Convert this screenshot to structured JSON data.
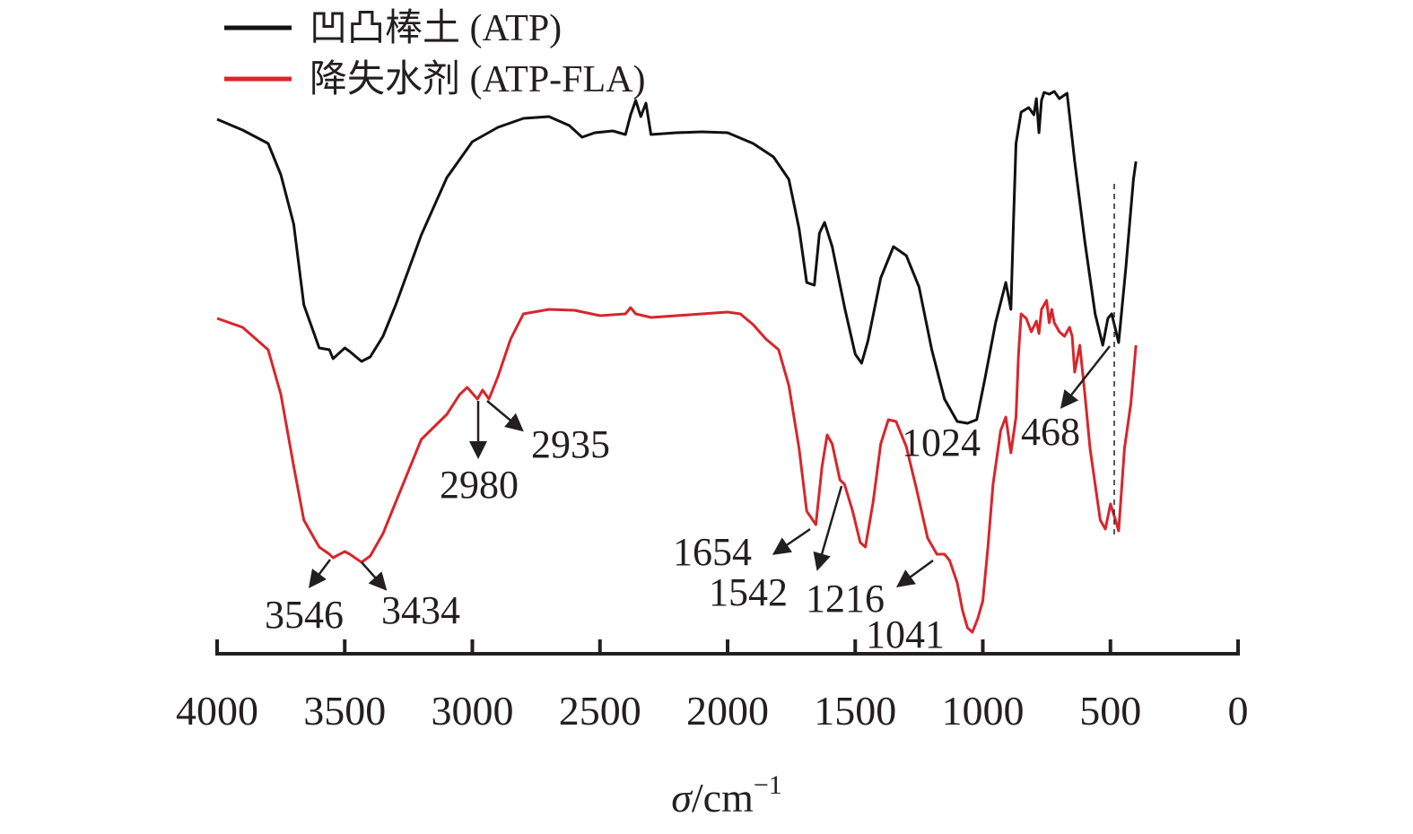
{
  "chart_data": {
    "type": "line",
    "xlabel_italic": "σ",
    "xlabel_rest": "/cm",
    "xlabel_sup": "−1",
    "ylabel": "",
    "xlim": [
      4000,
      0
    ],
    "x_ticks": [
      4000,
      3500,
      3000,
      2500,
      2000,
      1500,
      1000,
      500,
      0
    ],
    "grid": false,
    "y_axis_shown": false,
    "legend_position": "top-left",
    "series": [
      {
        "name": "凹凸棒土 (ATP)",
        "color": "#111111",
        "values": [
          [
            4000,
            133
          ],
          [
            3900,
            145
          ],
          [
            3800,
            160
          ],
          [
            3750,
            195
          ],
          [
            3700,
            250
          ],
          [
            3660,
            340
          ],
          [
            3600,
            388
          ],
          [
            3560,
            390
          ],
          [
            3546,
            400
          ],
          [
            3500,
            388
          ],
          [
            3480,
            392
          ],
          [
            3434,
            403
          ],
          [
            3400,
            398
          ],
          [
            3350,
            375
          ],
          [
            3300,
            340
          ],
          [
            3200,
            262
          ],
          [
            3100,
            198
          ],
          [
            3000,
            158
          ],
          [
            2900,
            142
          ],
          [
            2800,
            132
          ],
          [
            2700,
            130
          ],
          [
            2620,
            140
          ],
          [
            2570,
            153
          ],
          [
            2520,
            148
          ],
          [
            2450,
            146
          ],
          [
            2400,
            150
          ],
          [
            2380,
            128
          ],
          [
            2360,
            112
          ],
          [
            2340,
            130
          ],
          [
            2320,
            115
          ],
          [
            2300,
            150
          ],
          [
            2200,
            148
          ],
          [
            2100,
            147
          ],
          [
            2000,
            148
          ],
          [
            1900,
            160
          ],
          [
            1820,
            175
          ],
          [
            1760,
            200
          ],
          [
            1720,
            255
          ],
          [
            1690,
            315
          ],
          [
            1660,
            318
          ],
          [
            1640,
            260
          ],
          [
            1620,
            248
          ],
          [
            1590,
            275
          ],
          [
            1540,
            345
          ],
          [
            1500,
            395
          ],
          [
            1475,
            405
          ],
          [
            1450,
            380
          ],
          [
            1400,
            310
          ],
          [
            1350,
            275
          ],
          [
            1300,
            285
          ],
          [
            1250,
            320
          ],
          [
            1200,
            390
          ],
          [
            1150,
            445
          ],
          [
            1100,
            470
          ],
          [
            1060,
            472
          ],
          [
            1024,
            468
          ],
          [
            990,
            420
          ],
          [
            950,
            360
          ],
          [
            910,
            315
          ],
          [
            890,
            345
          ],
          [
            880,
            250
          ],
          [
            870,
            160
          ],
          [
            850,
            125
          ],
          [
            820,
            120
          ],
          [
            800,
            128
          ],
          [
            790,
            110
          ],
          [
            780,
            148
          ],
          [
            770,
            112
          ],
          [
            760,
            103
          ],
          [
            740,
            105
          ],
          [
            720,
            102
          ],
          [
            700,
            110
          ],
          [
            670,
            104
          ],
          [
            640,
            180
          ],
          [
            600,
            270
          ],
          [
            560,
            350
          ],
          [
            530,
            385
          ],
          [
            510,
            355
          ],
          [
            495,
            350
          ],
          [
            468,
            382
          ],
          [
            440,
            300
          ],
          [
            410,
            200
          ],
          [
            400,
            180
          ]
        ]
      },
      {
        "name": "降失水剂 (ATP-FLA)",
        "color": "#d7262c",
        "values": [
          [
            4000,
            355
          ],
          [
            3900,
            365
          ],
          [
            3800,
            390
          ],
          [
            3750,
            440
          ],
          [
            3700,
            520
          ],
          [
            3660,
            580
          ],
          [
            3600,
            610
          ],
          [
            3560,
            618
          ],
          [
            3546,
            622
          ],
          [
            3500,
            615
          ],
          [
            3480,
            618
          ],
          [
            3434,
            627
          ],
          [
            3400,
            620
          ],
          [
            3350,
            595
          ],
          [
            3300,
            560
          ],
          [
            3200,
            490
          ],
          [
            3100,
            462
          ],
          [
            3050,
            440
          ],
          [
            3020,
            432
          ],
          [
            2980,
            445
          ],
          [
            2960,
            435
          ],
          [
            2935,
            445
          ],
          [
            2900,
            420
          ],
          [
            2850,
            378
          ],
          [
            2800,
            350
          ],
          [
            2700,
            345
          ],
          [
            2600,
            346
          ],
          [
            2500,
            352
          ],
          [
            2400,
            350
          ],
          [
            2380,
            343
          ],
          [
            2360,
            350
          ],
          [
            2300,
            354
          ],
          [
            2200,
            352
          ],
          [
            2100,
            350
          ],
          [
            2000,
            348
          ],
          [
            1950,
            350
          ],
          [
            1900,
            362
          ],
          [
            1850,
            378
          ],
          [
            1800,
            390
          ],
          [
            1760,
            430
          ],
          [
            1720,
            500
          ],
          [
            1690,
            570
          ],
          [
            1654,
            585
          ],
          [
            1630,
            520
          ],
          [
            1610,
            485
          ],
          [
            1590,
            495
          ],
          [
            1560,
            535
          ],
          [
            1542,
            540
          ],
          [
            1510,
            570
          ],
          [
            1480,
            605
          ],
          [
            1460,
            610
          ],
          [
            1430,
            560
          ],
          [
            1400,
            495
          ],
          [
            1370,
            468
          ],
          [
            1340,
            470
          ],
          [
            1300,
            498
          ],
          [
            1260,
            545
          ],
          [
            1216,
            600
          ],
          [
            1180,
            618
          ],
          [
            1150,
            618
          ],
          [
            1130,
            625
          ],
          [
            1100,
            650
          ],
          [
            1080,
            680
          ],
          [
            1060,
            700
          ],
          [
            1041,
            705
          ],
          [
            1020,
            690
          ],
          [
            1000,
            670
          ],
          [
            980,
            610
          ],
          [
            960,
            540
          ],
          [
            930,
            480
          ],
          [
            910,
            465
          ],
          [
            890,
            505
          ],
          [
            870,
            465
          ],
          [
            860,
            395
          ],
          [
            850,
            350
          ],
          [
            830,
            355
          ],
          [
            810,
            370
          ],
          [
            790,
            358
          ],
          [
            780,
            372
          ],
          [
            770,
            345
          ],
          [
            750,
            335
          ],
          [
            740,
            360
          ],
          [
            730,
            345
          ],
          [
            720,
            360
          ],
          [
            700,
            370
          ],
          [
            680,
            375
          ],
          [
            660,
            365
          ],
          [
            650,
            375
          ],
          [
            640,
            415
          ],
          [
            620,
            385
          ],
          [
            600,
            440
          ],
          [
            580,
            500
          ],
          [
            540,
            580
          ],
          [
            520,
            590
          ],
          [
            500,
            562
          ],
          [
            480,
            580
          ],
          [
            468,
            592
          ],
          [
            445,
            500
          ],
          [
            420,
            450
          ],
          [
            400,
            385
          ]
        ]
      }
    ],
    "annotations": [
      {
        "text": "3546",
        "pos": "below-left"
      },
      {
        "text": "3434",
        "pos": "below-right"
      },
      {
        "text": "2980",
        "pos": "below"
      },
      {
        "text": "2935",
        "pos": "below-right"
      },
      {
        "text": "1654",
        "pos": "left"
      },
      {
        "text": "1542",
        "pos": "below"
      },
      {
        "text": "1216",
        "pos": "below"
      },
      {
        "text": "1041",
        "pos": "below"
      },
      {
        "text": "1024",
        "pos": "right"
      },
      {
        "text": "468",
        "pos": "below-left"
      }
    ]
  }
}
